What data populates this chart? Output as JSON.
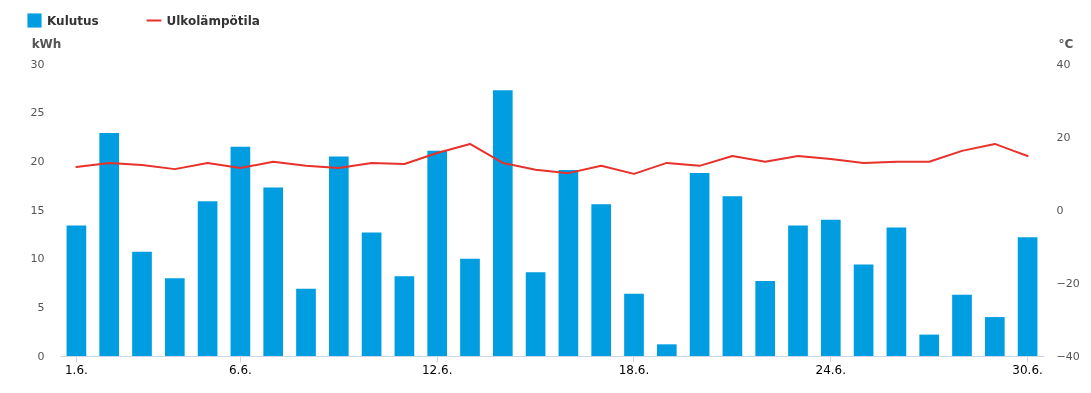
{
  "chart_data": {
    "type": "bar",
    "categories": [
      "1.6.",
      null,
      null,
      null,
      null,
      "6.6.",
      null,
      null,
      null,
      null,
      null,
      "12.6.",
      null,
      null,
      null,
      null,
      null,
      "18.6.",
      null,
      null,
      null,
      null,
      null,
      "24.6.",
      null,
      null,
      null,
      null,
      null,
      "30.6."
    ],
    "series": [
      {
        "name": "Kulutus",
        "color": "#009de0",
        "values": [
          13.4,
          22.9,
          10.7,
          8.0,
          15.9,
          21.5,
          17.3,
          6.9,
          20.5,
          12.7,
          8.2,
          21.1,
          10.0,
          27.3,
          8.6,
          19.1,
          15.6,
          6.4,
          1.2,
          18.8,
          16.4,
          7.7,
          13.4,
          14.0,
          9.4,
          13.2,
          2.2,
          6.3,
          4.0,
          12.2
        ]
      },
      {
        "name": "Ulkolämpötila",
        "type": "line",
        "axis": "y2",
        "color": "#e8312a",
        "values": [
          11.8,
          12.9,
          12.3,
          11.2,
          12.9,
          11.5,
          13.2,
          12.1,
          11.5,
          12.9,
          12.6,
          15.6,
          18.1,
          12.9,
          11.0,
          10.1,
          12.1,
          9.9,
          12.9,
          12.1,
          14.8,
          13.2,
          14.8,
          14.0,
          12.9,
          13.2,
          13.2,
          16.2,
          18.1,
          14.8
        ]
      }
    ],
    "ylabel": "kWh",
    "ylim": [
      0,
      30
    ],
    "yticks": [
      0,
      5,
      10,
      15,
      20,
      25,
      30
    ],
    "y2label": "°C",
    "y2lim": [
      -40,
      40
    ],
    "y2ticks": [
      -40,
      -20,
      0,
      20,
      40
    ],
    "legend": "top left"
  }
}
